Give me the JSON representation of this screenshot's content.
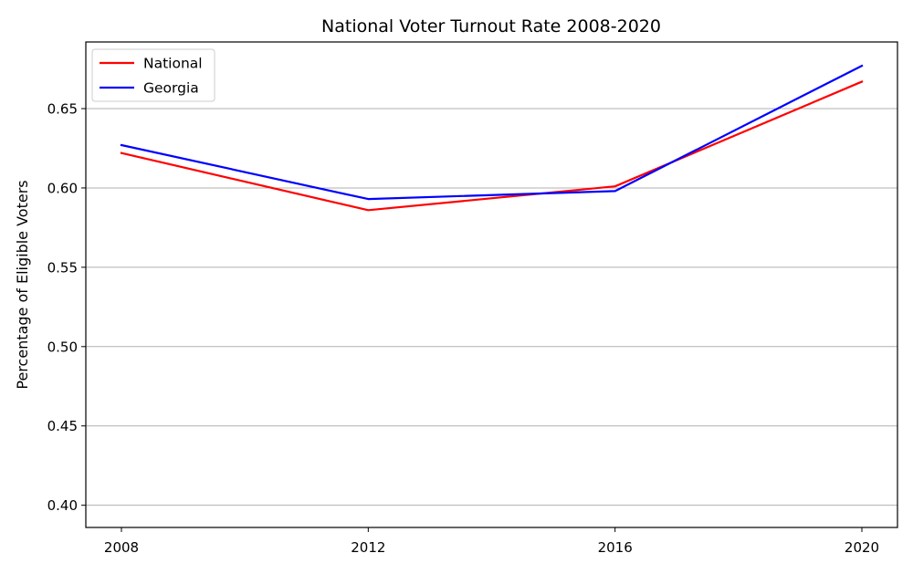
{
  "chart_data": {
    "type": "line",
    "title": "National Voter Turnout Rate 2008-2020",
    "xlabel": "",
    "ylabel": "Percentage of Eligible Voters",
    "x": [
      2008,
      2012,
      2016,
      2020
    ],
    "x_tick_labels": [
      "2008",
      "2012",
      "2016",
      "2020"
    ],
    "y_ticks": [
      0.4,
      0.45,
      0.5,
      0.55,
      0.6,
      0.65
    ],
    "y_tick_labels": [
      "0.40",
      "0.45",
      "0.50",
      "0.55",
      "0.60",
      "0.65"
    ],
    "ylim": [
      0.386,
      0.692
    ],
    "grid": "horizontal",
    "legend_position": "top-left",
    "series": [
      {
        "name": "National",
        "color": "#ff0000",
        "values": [
          0.622,
          0.586,
          0.601,
          0.667
        ]
      },
      {
        "name": "Georgia",
        "color": "#0000ff",
        "values": [
          0.627,
          0.593,
          0.598,
          0.677
        ]
      }
    ]
  }
}
